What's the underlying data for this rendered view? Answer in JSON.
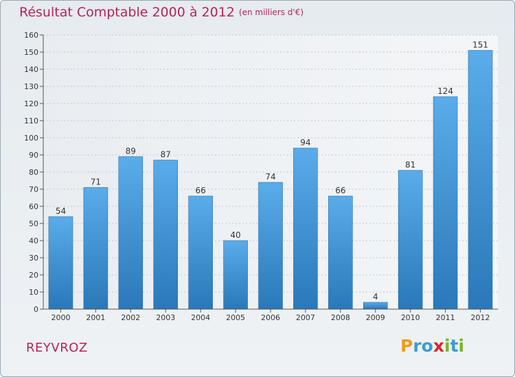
{
  "chart_data": {
    "type": "bar",
    "title": "Résultat Comptable 2000 à 2012",
    "subtitle": "(en milliers d'€)",
    "categories": [
      "2000",
      "2001",
      "2002",
      "2003",
      "2004",
      "2005",
      "2006",
      "2007",
      "2008",
      "2009",
      "2010",
      "2011",
      "2012"
    ],
    "values": [
      54,
      71,
      89,
      87,
      66,
      40,
      74,
      94,
      66,
      4,
      81,
      124,
      151
    ],
    "ylim": [
      0,
      160
    ],
    "yticks": [
      0,
      10,
      20,
      30,
      40,
      50,
      60,
      70,
      80,
      90,
      100,
      110,
      120,
      130,
      140,
      150,
      160
    ],
    "xlabel": "",
    "ylabel": "",
    "grid": true,
    "bar_color": "#3d92d6"
  },
  "commune": "REYVROZ",
  "logo": {
    "text": "Proxiti",
    "letters": [
      {
        "ch": "P",
        "color": "#f39a1c"
      },
      {
        "ch": "r",
        "color": "#3a9bd5"
      },
      {
        "ch": "o",
        "color": "#3a9bd5"
      },
      {
        "ch": "x",
        "color": "#d9262b"
      },
      {
        "ch": "i",
        "color": "#7ab52a"
      },
      {
        "ch": "t",
        "color": "#3a9bd5"
      },
      {
        "ch": "i",
        "color": "#7ab52a"
      }
    ]
  }
}
